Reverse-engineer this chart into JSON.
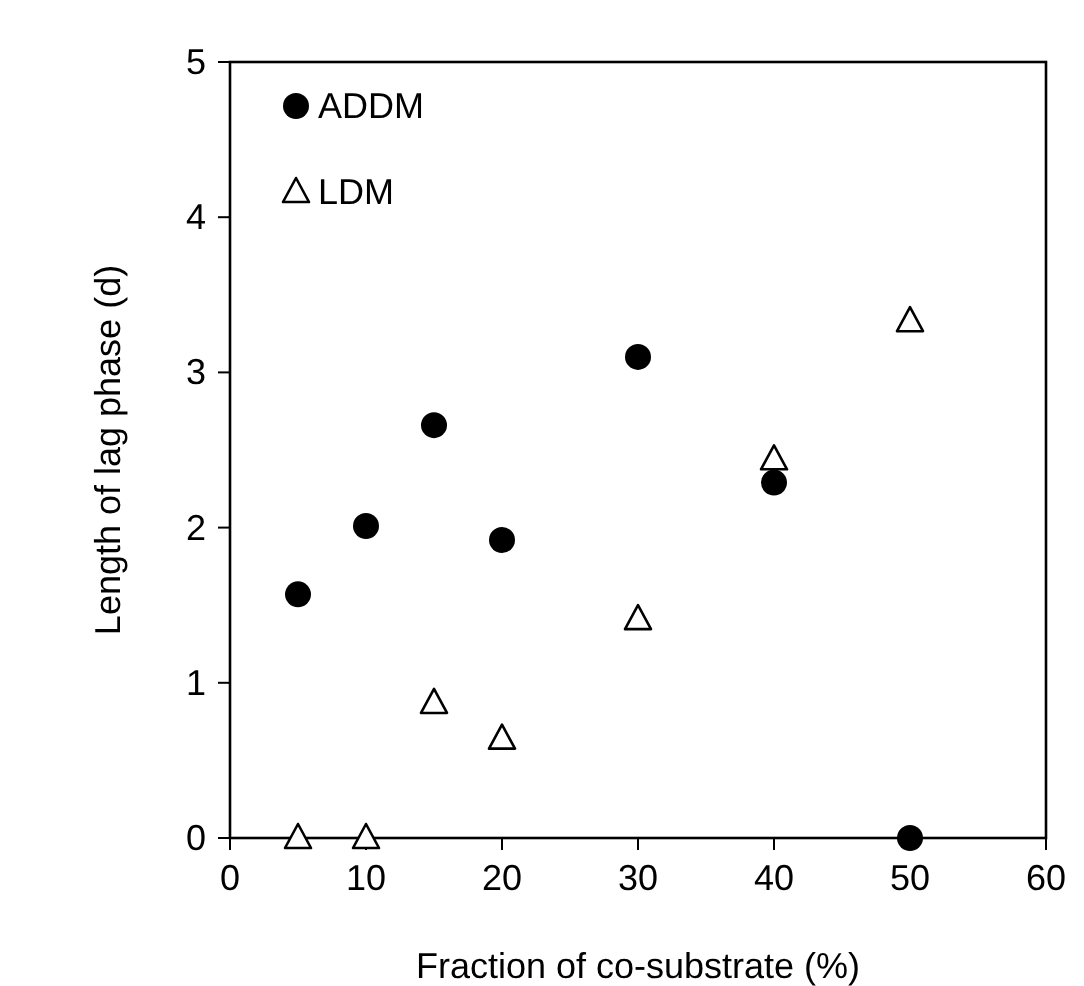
{
  "chart_data": {
    "type": "scatter",
    "xlabel": "Fraction of co-substrate (%)",
    "ylabel": "Length of lag phase (d)",
    "xlim": [
      0,
      60
    ],
    "xticks": [
      0,
      10,
      20,
      30,
      40,
      50,
      60
    ],
    "ylim": [
      0,
      5
    ],
    "yticks": [
      0,
      1,
      2,
      3,
      4,
      5
    ],
    "grid": false,
    "legend": "top left",
    "series": [
      {
        "name": "ADDM",
        "color": "#000000",
        "marker": "circle",
        "x": [
          5,
          10,
          15,
          20,
          30,
          40,
          50
        ],
        "values": [
          1.57,
          2.01,
          2.66,
          1.92,
          3.1,
          2.29,
          0
        ]
      },
      {
        "name": "LDM",
        "color": "#000000",
        "marker": "triangle",
        "x": [
          5,
          10,
          15,
          20,
          30,
          40,
          50
        ],
        "values": [
          0,
          0,
          0.87,
          0.64,
          1.41,
          2.44,
          3.33
        ]
      }
    ]
  }
}
